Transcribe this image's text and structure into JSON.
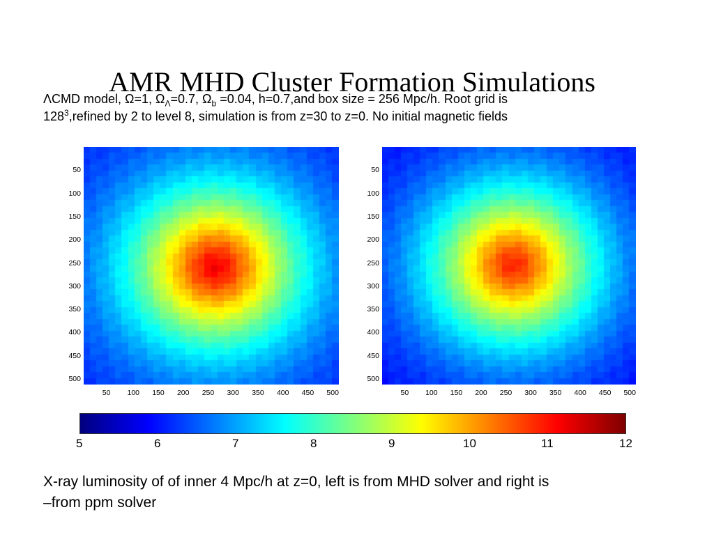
{
  "slide": {
    "title": "AMR MHD Cluster Formation Simulations",
    "subtitle": {
      "lambda": "Λ",
      "cmd_model": "CMD model, Ω=1, Ω",
      "sub_lambda": "Λ",
      "omega_b_pre": "=0.7, Ω",
      "sub_b": "b",
      "rest": " =0.04, h=0.7,and box size = 256 Mpc/h. Root grid is",
      "grid_base": "128",
      "grid_exp": "3",
      "line2": ",refined by 2 to level 8, simulation is from z=30 to z=0. No initial magnetic fields"
    },
    "caption": {
      "line1": "X-ray luminosity of of inner 4 Mpc/h at z=0, left is from MHD solver and right is",
      "bullet": "–",
      "line2": "from ppm solver"
    }
  },
  "chart_data": [
    {
      "type": "heatmap",
      "panel": "left",
      "solver": "MHD",
      "x_ticks": [
        50,
        100,
        150,
        200,
        250,
        300,
        350,
        400,
        450,
        500
      ],
      "y_ticks": [
        50,
        100,
        150,
        200,
        250,
        300,
        350,
        400,
        450,
        500
      ],
      "xlim": [
        0,
        512
      ],
      "ylim": [
        0,
        512
      ],
      "peak_x": 265,
      "peak_y": 260,
      "peak_value": 11.2,
      "edge_value": 6.0
    },
    {
      "type": "heatmap",
      "panel": "right",
      "solver": "ppm",
      "x_ticks": [
        50,
        100,
        150,
        200,
        250,
        300,
        350,
        400,
        450,
        500
      ],
      "y_ticks": [
        50,
        100,
        150,
        200,
        250,
        300,
        350,
        400,
        450,
        500
      ],
      "xlim": [
        0,
        512
      ],
      "ylim": [
        0,
        512
      ],
      "peak_x": 265,
      "peak_y": 255,
      "peak_value": 10.9,
      "edge_value": 5.8
    }
  ],
  "colorbar": {
    "colormap": "jet",
    "min": 5,
    "max": 12,
    "ticks": [
      "5",
      "6",
      "7",
      "8",
      "9",
      "10",
      "11",
      "12"
    ]
  }
}
